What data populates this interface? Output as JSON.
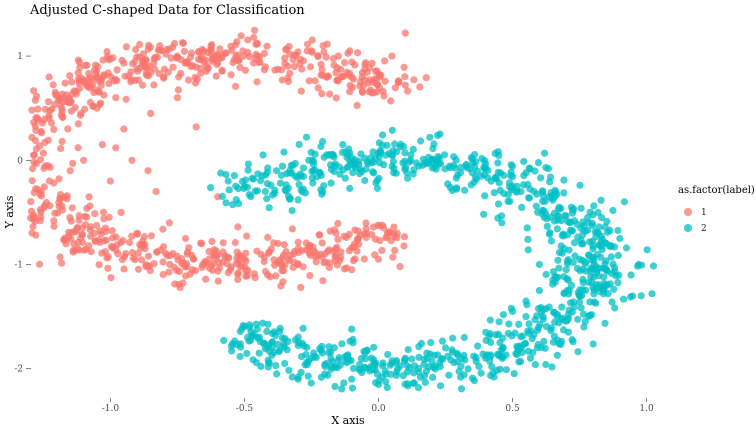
{
  "chart_data": {
    "type": "scatter",
    "title": "Adjusted C-shaped Data for Classification",
    "xlabel": "X axis",
    "ylabel": "Y axis",
    "xlim": [
      -1.3,
      1.05
    ],
    "ylim": [
      -2.3,
      1.25
    ],
    "x_ticks": [
      -1.0,
      -0.5,
      0.0,
      0.5,
      1.0
    ],
    "x_tick_labels": [
      "-1.0",
      "-0.5",
      "0.0",
      "0.5",
      "1.0"
    ],
    "y_ticks": [
      1,
      0,
      -1,
      -2
    ],
    "y_tick_labels": [
      "1",
      "0",
      "-1",
      "-2"
    ],
    "grid": false,
    "legend": {
      "title": "as.factor(label)",
      "placement": "right",
      "entries": [
        {
          "label": "1",
          "color": "#F8766D"
        },
        {
          "label": "2",
          "color": "#00BFC4"
        }
      ]
    },
    "point_alpha": 0.75,
    "series": [
      {
        "label": "1",
        "color": "#F8766D",
        "shape": "C-shape arc opening right",
        "arc": {
          "center": [
            -0.55,
            0.0
          ],
          "radius_x": 0.8,
          "radius_y": 1.0,
          "from_deg": 40,
          "to_deg": 320
        },
        "points": [
          [
            -1.27,
            -0.28
          ],
          [
            -1.25,
            0.07
          ],
          [
            -1.18,
            0.18
          ],
          [
            -1.15,
            -0.1
          ],
          [
            -1.12,
            0.35
          ],
          [
            -1.1,
            0.0
          ],
          [
            -1.08,
            -0.35
          ],
          [
            -1.05,
            0.5
          ],
          [
            -1.03,
            0.15
          ],
          [
            -1.0,
            -0.2
          ],
          [
            -0.98,
            0.6
          ],
          [
            -0.96,
            -0.5
          ],
          [
            -0.95,
            0.3
          ],
          [
            -0.92,
            0.0
          ],
          [
            -0.9,
            -0.7
          ],
          [
            -0.88,
            0.72
          ],
          [
            -0.85,
            0.45
          ],
          [
            -0.83,
            -0.3
          ],
          [
            -0.8,
            0.8
          ],
          [
            -0.78,
            -0.6
          ],
          [
            -0.75,
            0.6
          ],
          [
            -0.72,
            -0.75
          ],
          [
            -0.7,
            0.9
          ],
          [
            -0.66,
            -0.8
          ],
          [
            -0.62,
            0.95
          ],
          [
            -0.58,
            -0.88
          ],
          [
            -0.55,
            0.82
          ],
          [
            -0.5,
            -0.95
          ],
          [
            -0.45,
            1.0
          ],
          [
            -0.4,
            -0.85
          ],
          [
            -0.35,
            0.98
          ],
          [
            -0.3,
            -1.0
          ],
          [
            -0.25,
            1.05
          ],
          [
            -0.2,
            -0.9
          ],
          [
            -0.15,
            1.0
          ],
          [
            -0.1,
            -1.05
          ],
          [
            -0.05,
            0.92
          ],
          [
            0.0,
            -0.95
          ],
          [
            0.05,
            1.0
          ],
          [
            0.08,
            -1.02
          ],
          [
            0.1,
            0.72
          ],
          [
            0.1,
            1.22
          ],
          [
            -0.74,
            -1.22
          ],
          [
            -0.29,
            -1.22
          ],
          [
            -0.68,
            0.32
          ],
          [
            -0.6,
            -0.35
          ],
          [
            -0.86,
            -0.1
          ],
          [
            -0.98,
            0.12
          ]
        ]
      },
      {
        "label": "2",
        "color": "#00BFC4",
        "shape": "C-shape arc opening left",
        "arc": {
          "center": [
            0.05,
            -1.0
          ],
          "radius_x": 0.75,
          "radius_y": 1.0,
          "from_deg": -140,
          "to_deg": 140
        },
        "points": [
          [
            -0.38,
            -2.05
          ],
          [
            -0.35,
            -1.95
          ],
          [
            -0.3,
            -2.1
          ],
          [
            -0.25,
            -1.9
          ],
          [
            -0.2,
            -2.05
          ],
          [
            -0.15,
            -1.92
          ],
          [
            -0.1,
            -2.1
          ],
          [
            -0.05,
            -1.85
          ],
          [
            0.0,
            -2.15
          ],
          [
            0.05,
            -1.95
          ],
          [
            0.1,
            -1.9
          ],
          [
            0.18,
            -1.85
          ],
          [
            0.25,
            -1.8
          ],
          [
            0.32,
            -1.7
          ],
          [
            0.4,
            -1.65
          ],
          [
            0.45,
            -1.55
          ],
          [
            0.5,
            -1.45
          ],
          [
            0.55,
            -1.35
          ],
          [
            0.6,
            -1.25
          ],
          [
            0.65,
            -1.15
          ],
          [
            0.7,
            -1.05
          ],
          [
            0.75,
            -0.95
          ],
          [
            0.8,
            -0.85
          ],
          [
            0.82,
            -0.7
          ],
          [
            0.78,
            -0.55
          ],
          [
            0.72,
            -0.45
          ],
          [
            0.65,
            -0.35
          ],
          [
            0.58,
            -0.3
          ],
          [
            0.5,
            -0.25
          ],
          [
            0.42,
            -0.2
          ],
          [
            0.35,
            -0.12
          ],
          [
            0.28,
            -0.05
          ],
          [
            0.2,
            -0.02
          ],
          [
            0.12,
            0.0
          ],
          [
            0.05,
            0.05
          ],
          [
            -0.02,
            0.08
          ],
          [
            -0.1,
            0.02
          ],
          [
            -0.18,
            0.05
          ],
          [
            -0.26,
            0.0
          ],
          [
            -0.32,
            -0.05
          ],
          [
            -0.38,
            -0.1
          ],
          [
            -0.3,
            -0.38
          ],
          [
            0.46,
            -0.6
          ],
          [
            0.9,
            -0.75
          ],
          [
            0.97,
            -1.0
          ],
          [
            1.02,
            -1.28
          ],
          [
            0.98,
            -1.3
          ],
          [
            -0.1,
            -1.62
          ],
          [
            0.6,
            -1.0
          ],
          [
            0.72,
            -1.2
          ],
          [
            0.85,
            -1.05
          ],
          [
            0.55,
            -1.5
          ]
        ]
      }
    ]
  }
}
